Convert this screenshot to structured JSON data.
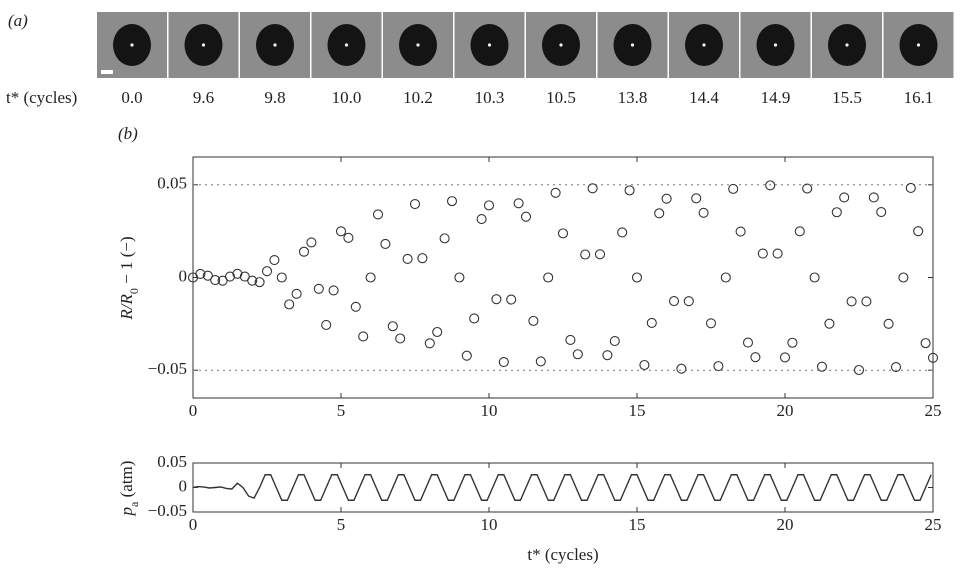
{
  "chart_data": [
    {
      "type": "image-strip",
      "panel_label": "(a)",
      "row_label": "t* (cycles)",
      "categories": [
        "0.0",
        "9.6",
        "9.8",
        "10.0",
        "10.2",
        "10.3",
        "10.5",
        "13.8",
        "14.4",
        "14.9",
        "15.5",
        "16.1"
      ]
    },
    {
      "type": "scatter",
      "panel_label": "(b)",
      "ylabel": [
        "R/R",
        "0",
        " − 1 (−)"
      ],
      "color": "#333333",
      "xlim": [
        0,
        25
      ],
      "xticks": [
        0,
        5,
        10,
        15,
        20,
        25
      ],
      "ylim": [
        -0.065,
        0.065
      ],
      "yticks": [
        {
          "value": -0.05,
          "label": "−0.05"
        },
        0,
        0.05
      ],
      "reference_lines": [
        -0.05,
        0.05
      ],
      "x": [
        0,
        0.25,
        0.5,
        0.75,
        1,
        1.25,
        1.5,
        1.75,
        2,
        2.25,
        2.5,
        2.75,
        3,
        3.25,
        3.5,
        3.75,
        4,
        4.25,
        4.5,
        4.75,
        5,
        5.25,
        5.5,
        5.75,
        6,
        6.25,
        6.5,
        6.75,
        7,
        7.25,
        7.5,
        7.75,
        8,
        8.25,
        8.5,
        8.75,
        9,
        9.25,
        9.5,
        9.75,
        10,
        10.25,
        10.5,
        10.75,
        11,
        11.25,
        11.5,
        11.75,
        12,
        12.25,
        12.5,
        12.75,
        13,
        13.25,
        13.5,
        13.75,
        14,
        14.25,
        14.5,
        14.75,
        15,
        15.25,
        15.5,
        15.75,
        16,
        16.25,
        16.5,
        16.75,
        17,
        17.25,
        17.5,
        17.75,
        18,
        18.25,
        18.5,
        18.75,
        19,
        19.25,
        19.5,
        19.75,
        20,
        20.25,
        20.5,
        20.75,
        21,
        21.25,
        21.5,
        21.75,
        22,
        22.25,
        22.5,
        22.75,
        23,
        23.25,
        23.5,
        23.75,
        24,
        24.25,
        24.5,
        24.75,
        25
      ],
      "values": [
        0,
        0.0019,
        0.001,
        -0.0014,
        -0.0017,
        0.0005,
        0.002,
        0.0005,
        -0.0017,
        -0.0025,
        0.0034,
        0.0094,
        0,
        -0.0145,
        -0.0088,
        0.0139,
        0.0189,
        -0.0061,
        -0.0256,
        -0.007,
        0.0249,
        0.0214,
        -0.0158,
        -0.0318,
        0,
        0.034,
        0.0181,
        -0.0263,
        -0.0329,
        0.01,
        0.0396,
        0.0104,
        -0.0355,
        -0.0294,
        0.0211,
        0.0412,
        0,
        -0.0422,
        -0.0221,
        0.0315,
        0.0389,
        -0.0117,
        -0.0456,
        -0.0119,
        0.04,
        0.0328,
        -0.0234,
        -0.0453,
        0,
        0.0457,
        0.0238,
        -0.0337,
        -0.0414,
        0.0124,
        0.0481,
        0.0125,
        -0.0419,
        -0.0343,
        0.0243,
        0.047,
        0,
        -0.0472,
        -0.0245,
        0.0346,
        0.0425,
        -0.0127,
        -0.0492,
        -0.0128,
        0.0427,
        0.0349,
        -0.0247,
        -0.0478,
        0,
        0.0478,
        0.0248,
        -0.0351,
        -0.043,
        0.0129,
        0.0497,
        0.0129,
        -0.0431,
        -0.0352,
        0.0249,
        0.048,
        0,
        -0.0481,
        -0.0249,
        0.0352,
        0.0432,
        -0.0129,
        -0.0499,
        -0.0129,
        0.0432,
        0.0353,
        -0.025,
        -0.0483,
        0,
        0.0483,
        0.025,
        -0.0354,
        -0.0433
      ]
    },
    {
      "type": "line",
      "ylabel": [
        "p",
        "a",
        " (atm)"
      ],
      "xlabel": "t* (cycles)",
      "color": "#333333",
      "xlim": [
        0,
        25
      ],
      "xticks": [
        0,
        5,
        10,
        15,
        20,
        25
      ],
      "ylim": [
        -0.05,
        0.05
      ],
      "yticks": [
        {
          "value": -0.05,
          "label": "−0.05"
        },
        0,
        0.05
      ],
      "x": [
        0,
        0.1875,
        0.375,
        0.5625,
        0.75,
        0.9375,
        1.125,
        1.3125,
        1.5,
        1.6875,
        1.875,
        2.0625,
        2.25,
        2.4375,
        2.625,
        2.8125,
        3,
        3.1875,
        3.375,
        3.5625,
        3.75,
        3.9375,
        4.125,
        4.3125,
        4.5,
        4.6875,
        4.875,
        5.0625,
        5.25,
        5.4375,
        5.625,
        5.8125,
        6,
        6.1875,
        6.375,
        6.5625,
        6.75,
        6.9375,
        7.125,
        7.3125,
        7.5,
        7.6875,
        7.875,
        8.0625,
        8.25,
        8.4375,
        8.625,
        8.8125,
        9,
        9.1875,
        9.375,
        9.5625,
        9.75,
        9.9375,
        10.125,
        10.3125,
        10.5,
        10.6875,
        10.875,
        11.0625,
        11.25,
        11.4375,
        11.625,
        11.8125,
        12,
        12.1875,
        12.375,
        12.5625,
        12.75,
        12.9375,
        13.125,
        13.3125,
        13.5,
        13.6875,
        13.875,
        14.0625,
        14.25,
        14.4375,
        14.625,
        14.8125,
        15,
        15.1875,
        15.375,
        15.5625,
        15.75,
        15.9375,
        16.125,
        16.3125,
        16.5,
        16.6875,
        16.875,
        17.0625,
        17.25,
        17.4375,
        17.625,
        17.8125,
        18,
        18.1875,
        18.375,
        18.5625,
        18.75,
        18.9375,
        19.125,
        19.3125,
        19.5,
        19.6875,
        19.875,
        20.0625,
        20.25,
        20.4375,
        20.625,
        20.8125,
        21,
        21.1875,
        21.375,
        21.5625,
        21.75,
        21.9375,
        22.125,
        22.3125,
        22.5,
        22.6875,
        22.875,
        23.0625,
        23.25,
        23.4375,
        23.625,
        23.8125,
        24,
        24.1875,
        24.375,
        24.5625,
        24.75,
        24.9375
      ],
      "values": [
        0,
        0.002,
        0.001,
        -0.001,
        0,
        0.001,
        -0.002,
        -0.003,
        0.0087,
        0,
        -0.0173,
        -0.0217,
        0,
        0.026,
        0.026,
        0,
        -0.026,
        -0.026,
        0,
        0.026,
        0.026,
        0,
        -0.026,
        -0.026,
        0,
        0.026,
        0.026,
        0,
        -0.026,
        -0.026,
        0,
        0.026,
        0.026,
        0,
        -0.026,
        -0.026,
        0,
        0.026,
        0.026,
        0,
        -0.026,
        -0.026,
        0,
        0.026,
        0.026,
        0,
        -0.026,
        -0.026,
        0,
        0.026,
        0.026,
        0,
        -0.026,
        -0.026,
        0,
        0.026,
        0.026,
        0,
        -0.026,
        -0.026,
        0,
        0.026,
        0.026,
        0,
        -0.026,
        -0.026,
        0,
        0.026,
        0.026,
        0,
        -0.026,
        -0.026,
        0,
        0.026,
        0.026,
        0,
        -0.026,
        -0.026,
        0,
        0.026,
        0.026,
        0,
        -0.026,
        -0.026,
        0,
        0.026,
        0.026,
        0,
        -0.026,
        -0.026,
        0,
        0.026,
        0.026,
        0,
        -0.026,
        -0.026,
        0,
        0.026,
        0.026,
        0,
        -0.026,
        -0.026,
        0,
        0.026,
        0.026,
        0,
        -0.026,
        -0.026,
        0,
        0.026,
        0.026,
        0,
        -0.026,
        -0.026,
        0,
        0.026,
        0.026,
        0,
        -0.026,
        -0.026,
        0,
        0.026,
        0.026,
        0,
        -0.026,
        -0.026,
        0,
        0.026,
        0.026,
        0,
        -0.026,
        -0.026,
        0,
        0.026
      ]
    }
  ]
}
